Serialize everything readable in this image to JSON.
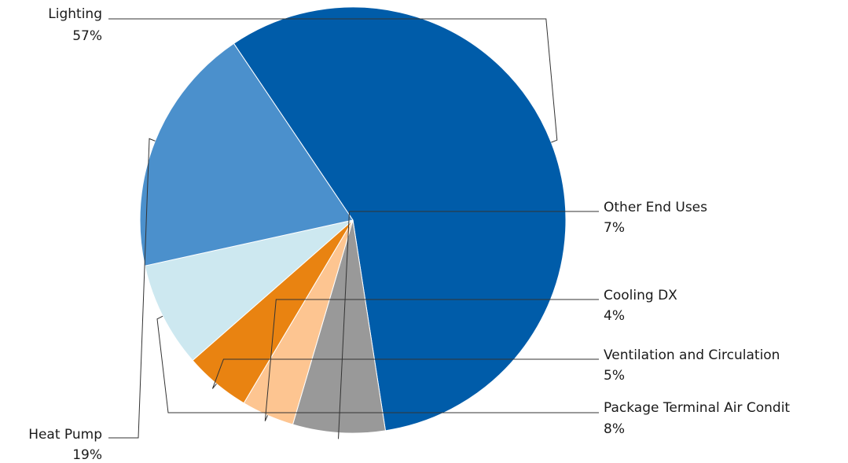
{
  "chart_data": {
    "type": "pie",
    "title": "",
    "slices": [
      {
        "label": "Lighting",
        "value": 57,
        "value_label": "57%",
        "color": "#005CA9"
      },
      {
        "label": "Other End Uses",
        "value": 7,
        "value_label": "7%",
        "color": "#999999"
      },
      {
        "label": "Cooling DX",
        "value": 4,
        "value_label": "4%",
        "color": "#FDC591"
      },
      {
        "label": "Ventilation and Circulation",
        "value": 5,
        "value_label": "5%",
        "color": "#E98311"
      },
      {
        "label": "Package Terminal Air Condit",
        "value": 8,
        "value_label": "8%",
        "color": "#CDE8F0"
      },
      {
        "label": "Heat Pump",
        "value": 19,
        "value_label": "19%",
        "color": "#4B90CC"
      }
    ]
  }
}
